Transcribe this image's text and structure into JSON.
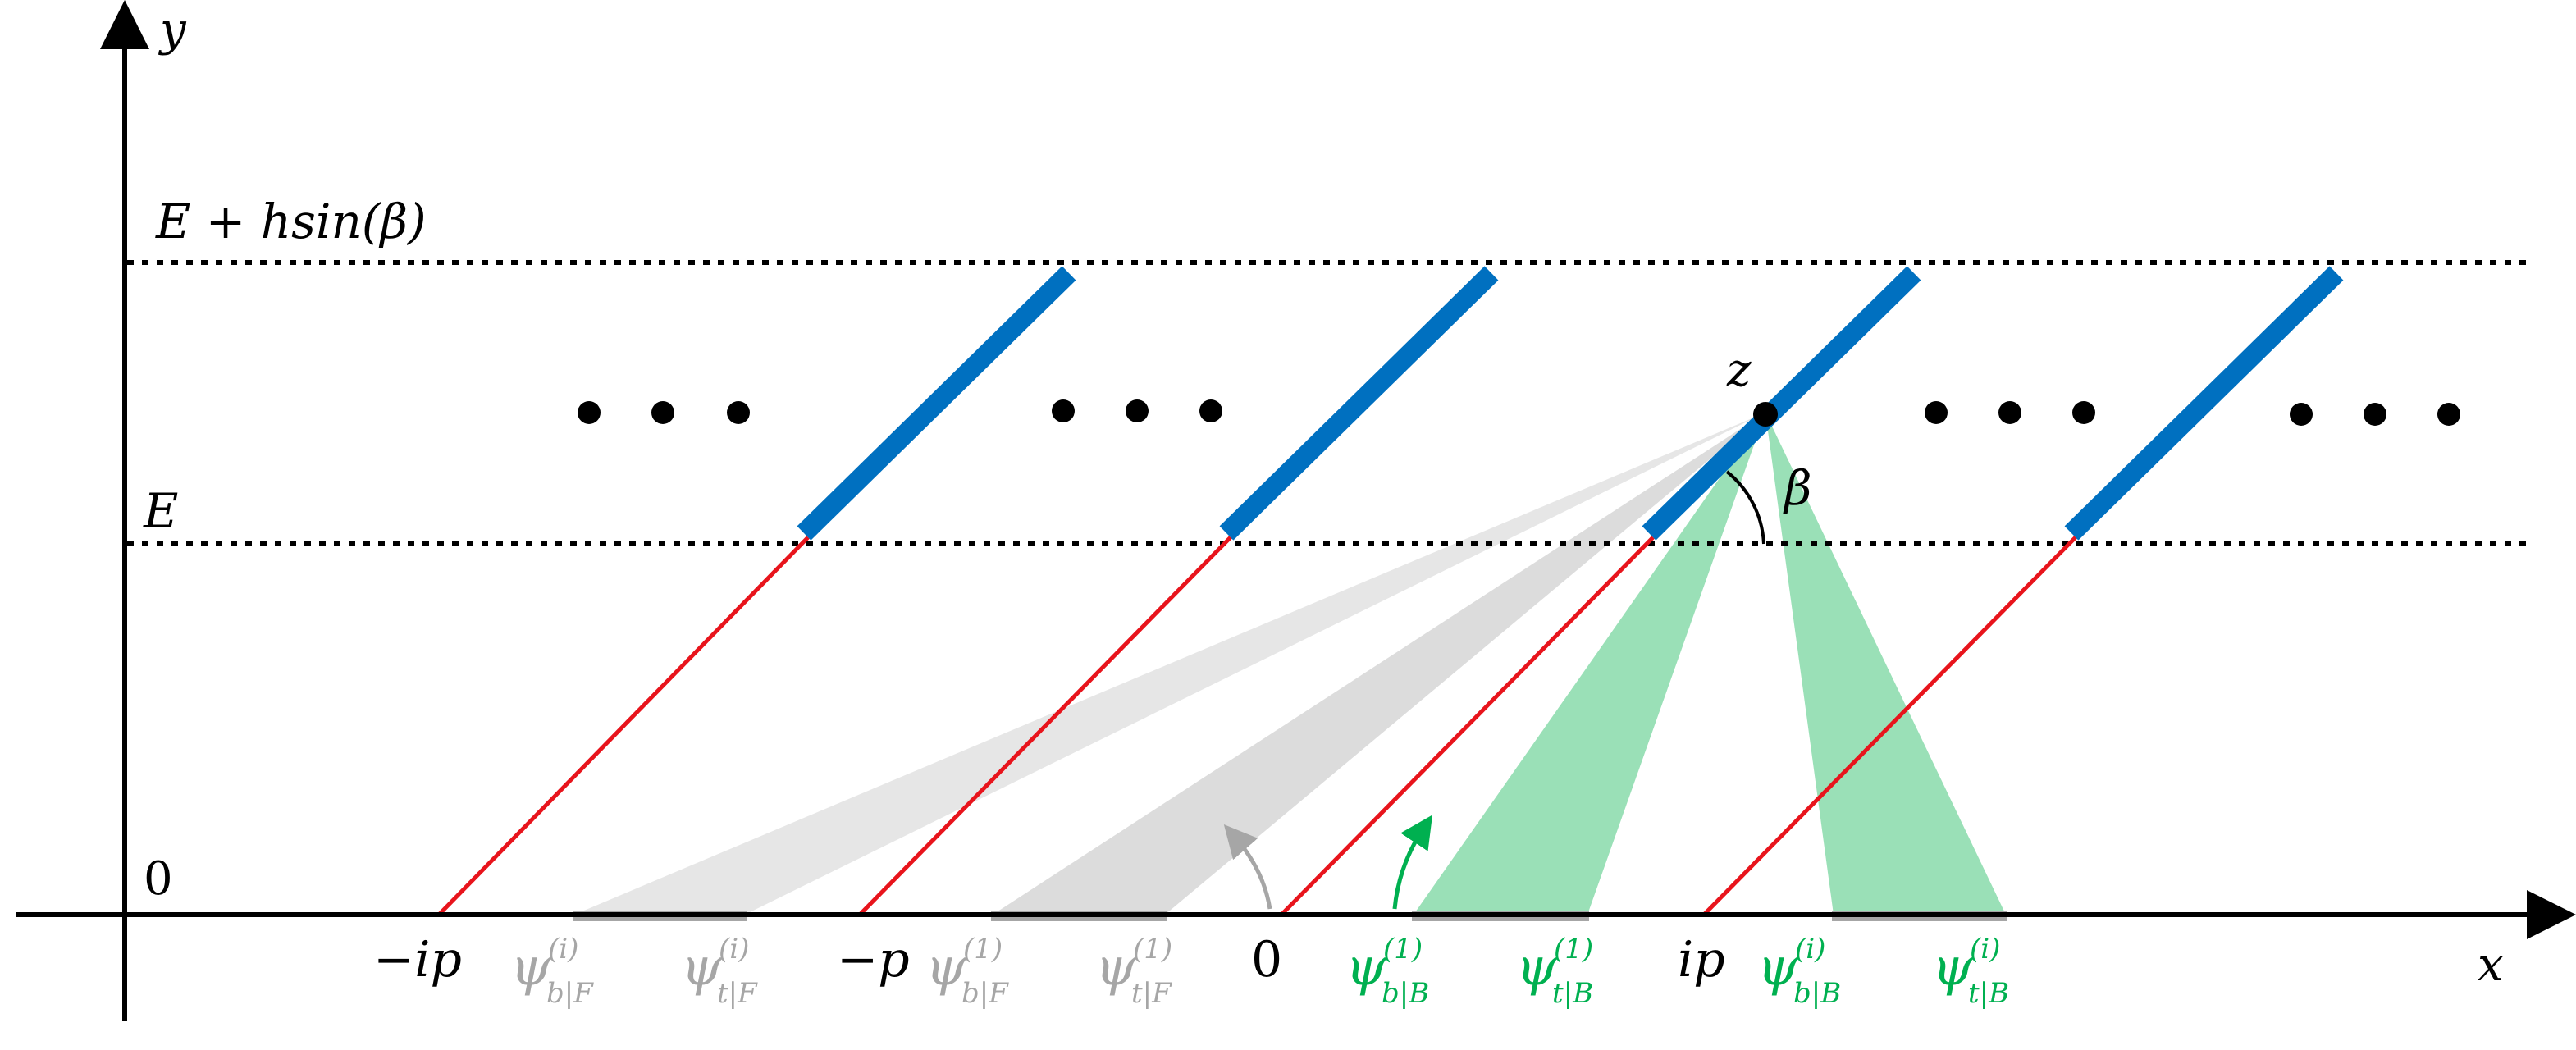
{
  "axes": {
    "x_label": "x",
    "y_label": "y",
    "origin_y_label": "0"
  },
  "levels": {
    "upper_label": "E + hsin(β)",
    "lower_label": "E"
  },
  "point": {
    "label": "z",
    "angle_label": "β"
  },
  "x_ticks": {
    "minus_ip": "−ip",
    "minus_p": "−p",
    "zero": "0",
    "ip": "ip"
  },
  "psi_labels": [
    {
      "base": "ψ",
      "sup": "(i)",
      "sub": "b|F",
      "color": "#a6a6a6"
    },
    {
      "base": "ψ",
      "sup": "(i)",
      "sub": "t|F",
      "color": "#a6a6a6"
    },
    {
      "base": "ψ",
      "sup": "(1)",
      "sub": "b|F",
      "color": "#a6a6a6"
    },
    {
      "base": "ψ",
      "sup": "(1)",
      "sub": "t|F",
      "color": "#a6a6a6"
    },
    {
      "base": "ψ",
      "sup": "(1)",
      "sub": "b|B",
      "color": "#00b050"
    },
    {
      "base": "ψ",
      "sup": "(1)",
      "sub": "t|B",
      "color": "#00b050"
    },
    {
      "base": "ψ",
      "sup": "(i)",
      "sub": "b|B",
      "color": "#00b050"
    },
    {
      "base": "ψ",
      "sup": "(i)",
      "sub": "t|B",
      "color": "#00b050"
    }
  ],
  "colors": {
    "panel": "#0070c0",
    "ray": "#e8141c",
    "front_shadow": "#d9d9d9",
    "back_view": "#86d9a8",
    "green_text": "#00b050",
    "grey_text": "#a6a6a6",
    "ground_segment": "#a6a6a6",
    "axis": "#000000"
  }
}
